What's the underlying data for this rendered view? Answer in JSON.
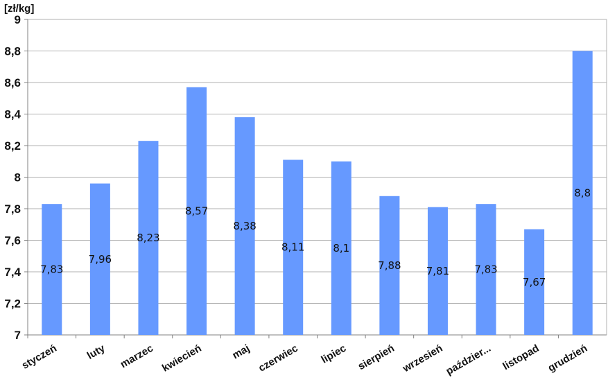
{
  "chart_data": {
    "type": "bar",
    "title": "",
    "ylabel": "[zł/kg]",
    "xlabel": "",
    "categories": [
      "styczeń",
      "luty",
      "marzec",
      "kwiecień",
      "maj",
      "czerwiec",
      "lipiec",
      "sierpień",
      "wrzesień",
      "paździer...",
      "listopad",
      "grudzień"
    ],
    "values": [
      7.83,
      7.96,
      8.23,
      8.57,
      8.38,
      8.11,
      8.1,
      7.88,
      7.81,
      7.83,
      7.67,
      8.8
    ],
    "data_labels": [
      "7,83",
      "7,96",
      "8,23",
      "8,57",
      "8,38",
      "8,11",
      "8,1",
      "7,88",
      "7,81",
      "7,83",
      "7,67",
      "8,8"
    ],
    "ylim": [
      7,
      9
    ],
    "yticks": [
      7,
      7.2,
      7.4,
      7.6,
      7.8,
      8,
      8.2,
      8.4,
      8.6,
      8.8,
      9
    ],
    "ytick_labels": [
      "7",
      "7,2",
      "7,4",
      "7,6",
      "7,8",
      "8",
      "8,2",
      "8,4",
      "8,6",
      "8,8",
      "9"
    ],
    "grid": true,
    "legend": "none",
    "colors": {
      "bar": "#6699ff",
      "grid": "#b0b0b0",
      "axis": "#808080"
    }
  }
}
